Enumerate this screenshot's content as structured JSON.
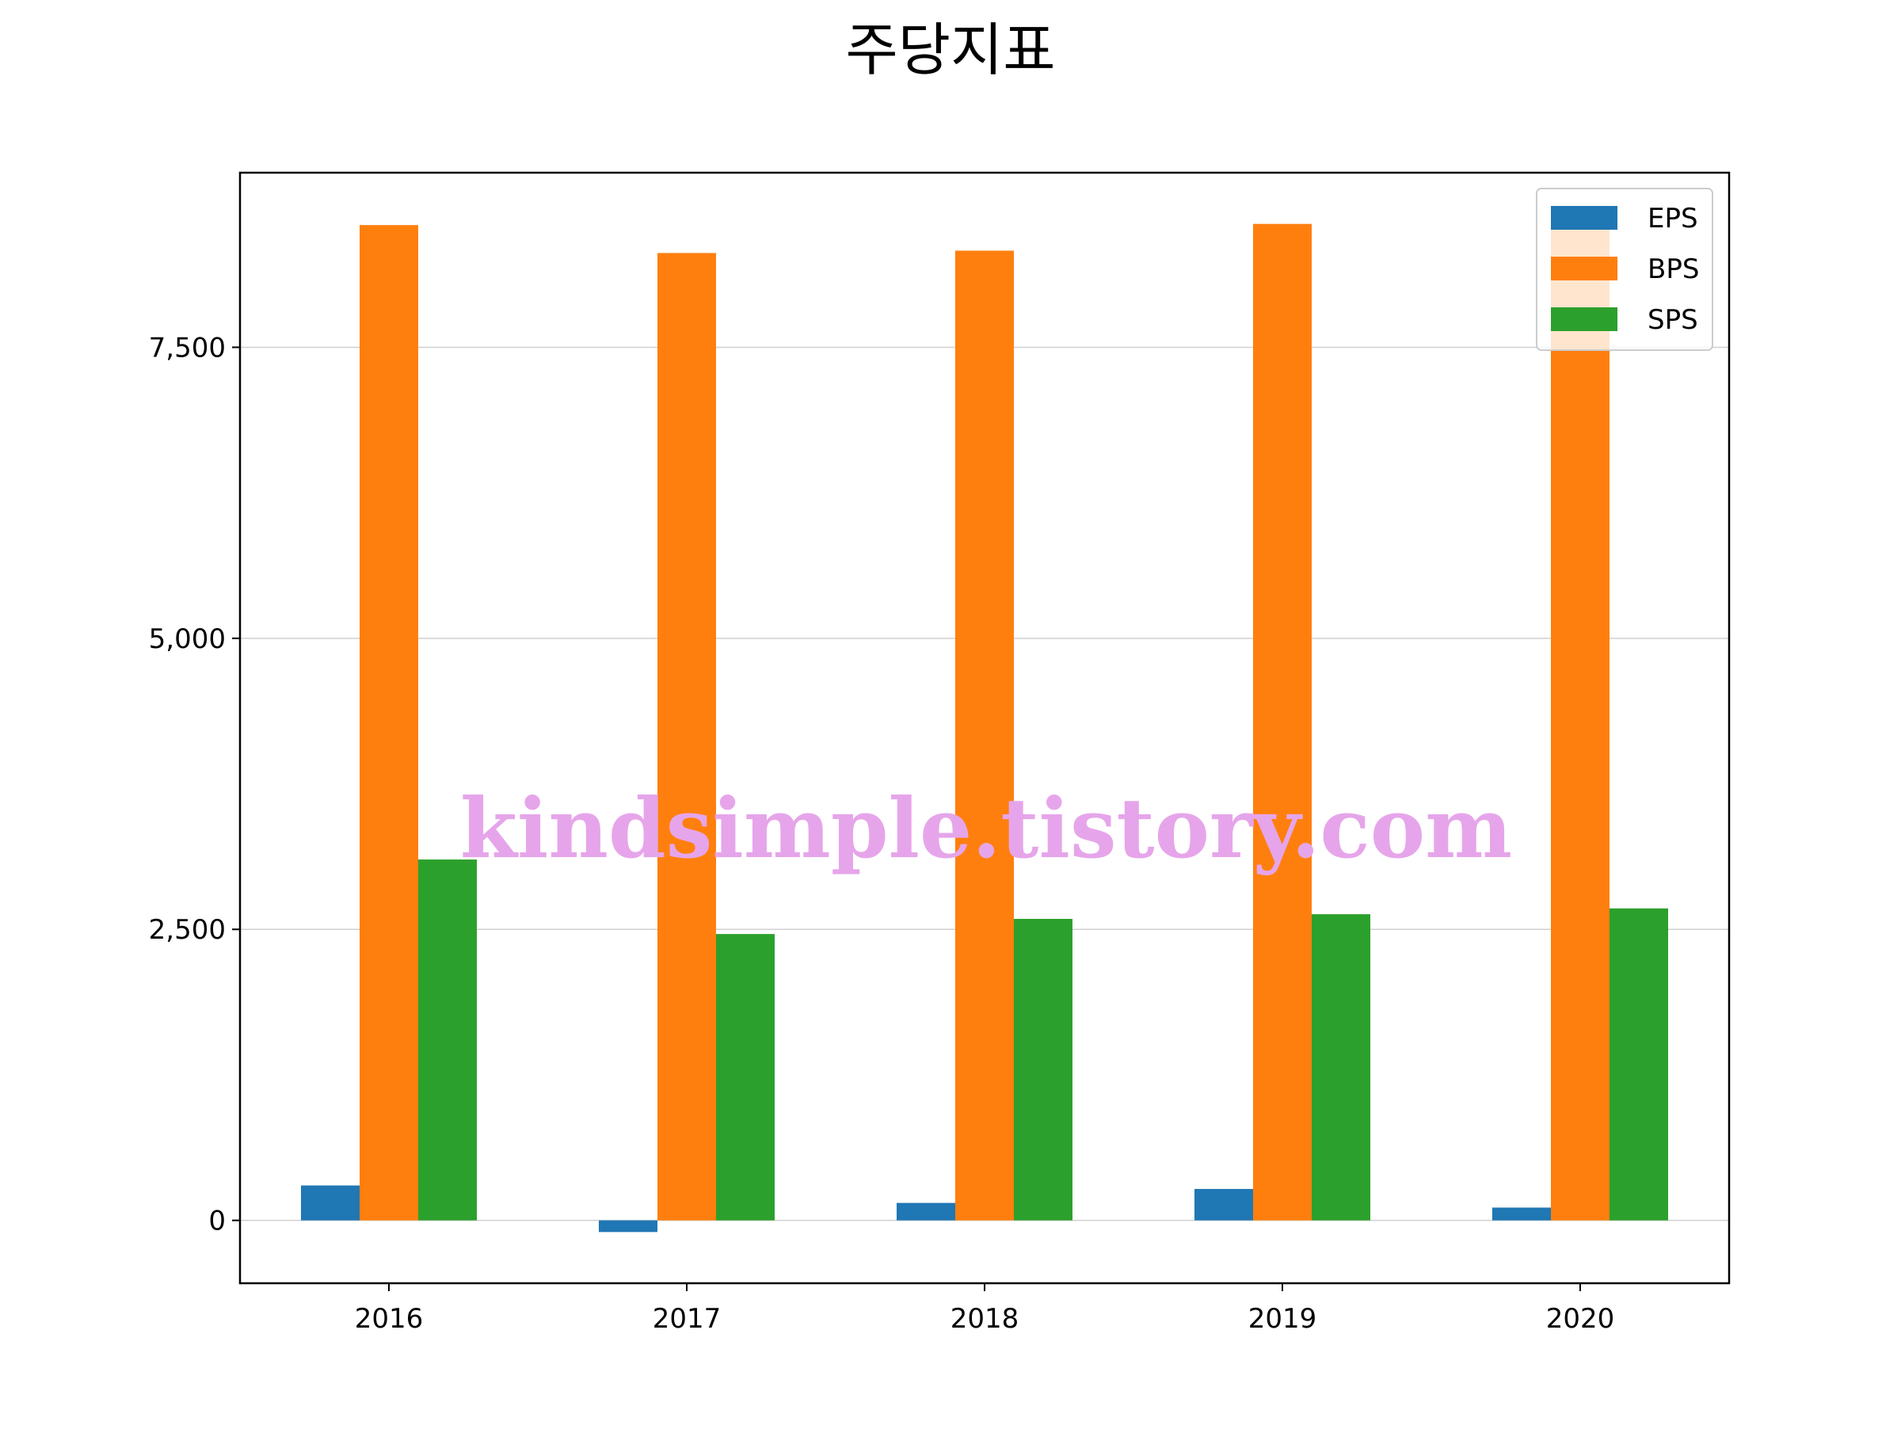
{
  "chart_data": {
    "type": "bar",
    "title": "주당지표",
    "xlabel": "",
    "ylabel": "",
    "categories": [
      "2016",
      "2017",
      "2018",
      "2019",
      "2020"
    ],
    "series": [
      {
        "name": "EPS",
        "color": "#1f77b4",
        "values": [
          300,
          -100,
          150,
          270,
          110
        ]
      },
      {
        "name": "BPS",
        "color": "#ff7f0e",
        "values": [
          8550,
          8310,
          8330,
          8560,
          8550
        ]
      },
      {
        "name": "SPS",
        "color": "#2ca02c",
        "values": [
          3100,
          2460,
          2590,
          2630,
          2680
        ]
      }
    ],
    "ylim": [
      -540,
      9000
    ],
    "yticks": [
      0,
      2500,
      5000,
      7500
    ],
    "ytick_labels": [
      "0",
      "2,500",
      "5,000",
      "7,500"
    ],
    "grid": "y",
    "legend_position": "top-right"
  },
  "watermark": "kindsimple.tistory.com"
}
